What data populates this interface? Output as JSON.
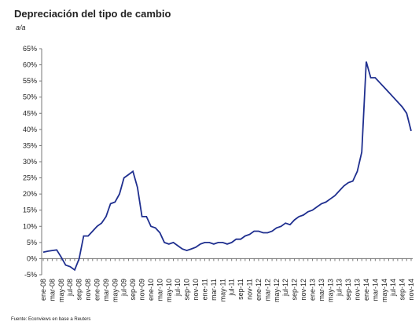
{
  "chart_data": {
    "type": "line",
    "title": "Depreciación del tipo de cambio",
    "subtitle": "a/a",
    "source": "Fuente: Econviews en base a Reuters",
    "categories": [
      "ene-08",
      null,
      "mar-08",
      null,
      "may-08",
      null,
      "jul-08",
      null,
      "sep-08",
      null,
      "nov-08",
      null,
      "ene-09",
      null,
      "mar-09",
      null,
      "may-09",
      null,
      "jul-09",
      null,
      "sep-09",
      null,
      "nov-09",
      null,
      "ene-10",
      null,
      "mar-10",
      null,
      "may-10",
      null,
      "jul-10",
      null,
      "sep-10",
      null,
      "nov-10",
      null,
      "ene-11",
      null,
      "mar-11",
      null,
      "may-11",
      null,
      "jul-11",
      null,
      "sep-11",
      null,
      "nov-11",
      null,
      "ene-12",
      null,
      "mar-12",
      null,
      "may-12",
      null,
      "jul-12",
      null,
      "sep-12",
      null,
      "nov-12",
      null,
      "ene-13",
      null,
      "mar-13",
      null,
      "may-13",
      null,
      "jul-13",
      null,
      "sep-13",
      null,
      "nov-13",
      null,
      "ene-14",
      null,
      "mar-14",
      null,
      "may-14",
      null,
      "jul-14",
      null,
      "sep-14",
      null,
      "nov-14"
    ],
    "series": [
      {
        "name": "Depreciación",
        "color": "#1f2f8f",
        "values": [
          2,
          2.3,
          2.5,
          2.7,
          0.5,
          -2,
          -2.5,
          -3.5,
          0,
          7,
          7,
          8.5,
          10,
          11,
          13,
          17,
          17.5,
          20,
          25,
          26,
          27,
          22,
          13,
          13,
          10,
          9.5,
          8,
          5,
          4.5,
          5,
          4,
          3,
          2.5,
          3,
          3.5,
          4.5,
          5,
          5,
          4.5,
          5,
          5,
          4.5,
          5,
          6,
          6,
          7,
          7.5,
          8.5,
          8.5,
          8,
          8,
          8.5,
          9.5,
          10,
          11,
          10.5,
          12,
          13,
          13.5,
          14.5,
          15,
          16,
          17,
          17.5,
          18.5,
          19.5,
          21,
          22.5,
          23.5,
          24,
          27,
          33,
          61,
          56,
          56,
          54.5,
          53,
          51.5,
          50,
          48.5,
          47,
          45,
          39.5
        ]
      }
    ],
    "ylim": [
      -5,
      65
    ],
    "yticks": [
      {
        "value": -5,
        "label": "-5%"
      },
      {
        "value": 0,
        "label": "0%"
      },
      {
        "value": 5,
        "label": "5%"
      },
      {
        "value": 10,
        "label": "10%"
      },
      {
        "value": 15,
        "label": "15%"
      },
      {
        "value": 20,
        "label": "20%"
      },
      {
        "value": 25,
        "label": "25%"
      },
      {
        "value": 30,
        "label": "30%"
      },
      {
        "value": 35,
        "label": "35%"
      },
      {
        "value": 40,
        "label": "40%"
      },
      {
        "value": 45,
        "label": "45%"
      },
      {
        "value": 50,
        "label": "50%"
      },
      {
        "value": 55,
        "label": "55%"
      },
      {
        "value": 60,
        "label": "60%"
      },
      {
        "value": 65,
        "label": "65%"
      }
    ],
    "grid": false
  }
}
